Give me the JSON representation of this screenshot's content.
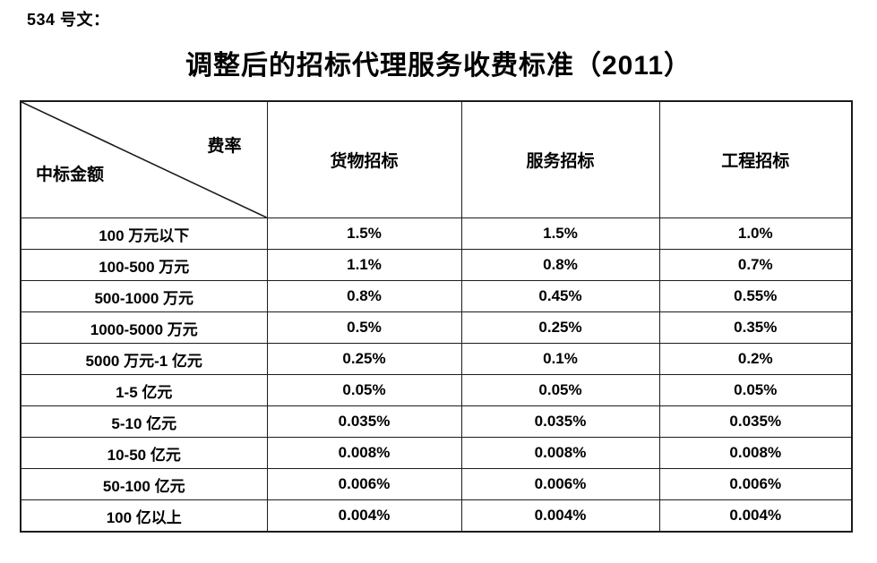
{
  "doc": {
    "label": "534 号文：",
    "title": "调整后的招标代理服务收费标准（2011）"
  },
  "table": {
    "corner": {
      "top_right": "费率",
      "bottom_left": "中标金额"
    },
    "columns": [
      "货物招标",
      "服务招标",
      "工程招标"
    ],
    "rows": [
      {
        "amount": "100 万元以下",
        "values": [
          "1.5%",
          "1.5%",
          "1.0%"
        ]
      },
      {
        "amount": "100-500 万元",
        "values": [
          "1.1%",
          "0.8%",
          "0.7%"
        ]
      },
      {
        "amount": "500-1000 万元",
        "values": [
          "0.8%",
          "0.45%",
          "0.55%"
        ]
      },
      {
        "amount": "1000-5000 万元",
        "values": [
          "0.5%",
          "0.25%",
          "0.35%"
        ]
      },
      {
        "amount": "5000 万元-1 亿元",
        "values": [
          "0.25%",
          "0.1%",
          "0.2%"
        ]
      },
      {
        "amount": "1-5 亿元",
        "values": [
          "0.05%",
          "0.05%",
          "0.05%"
        ]
      },
      {
        "amount": "5-10 亿元",
        "values": [
          "0.035%",
          "0.035%",
          "0.035%"
        ]
      },
      {
        "amount": "10-50 亿元",
        "values": [
          "0.008%",
          "0.008%",
          "0.008%"
        ]
      },
      {
        "amount": "50-100 亿元",
        "values": [
          "0.006%",
          "0.006%",
          "0.006%"
        ]
      },
      {
        "amount": "100 亿以上",
        "values": [
          "0.004%",
          "0.004%",
          "0.004%"
        ]
      }
    ]
  },
  "colors": {
    "text": "#000000",
    "border": "#1c1c1c",
    "background": "#ffffff"
  }
}
